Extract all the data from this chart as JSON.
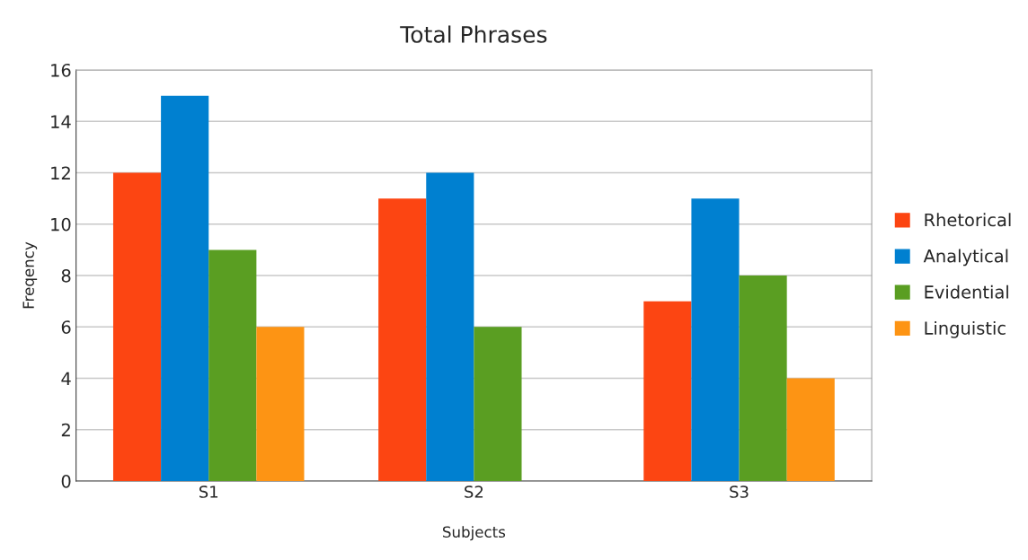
{
  "chart_data": {
    "type": "bar",
    "title": "Total Phrases",
    "xlabel": "Subjects",
    "ylabel": "Freqency",
    "categories": [
      "S1",
      "S2",
      "S3"
    ],
    "series": [
      {
        "name": "Rhetorical",
        "color": "#fc4512",
        "values": [
          12,
          11,
          7
        ]
      },
      {
        "name": "Analytical",
        "color": "#0080d0",
        "values": [
          15,
          12,
          11
        ]
      },
      {
        "name": "Evidential",
        "color": "#5a9e22",
        "values": [
          9,
          6,
          8
        ]
      },
      {
        "name": "Linguistic",
        "color": "#fd9414",
        "values": [
          6,
          null,
          4
        ]
      }
    ],
    "ylim": [
      0,
      16
    ],
    "yticks": [
      0,
      2,
      4,
      6,
      8,
      10,
      12,
      14,
      16
    ],
    "grid": "y",
    "legend": "right"
  }
}
